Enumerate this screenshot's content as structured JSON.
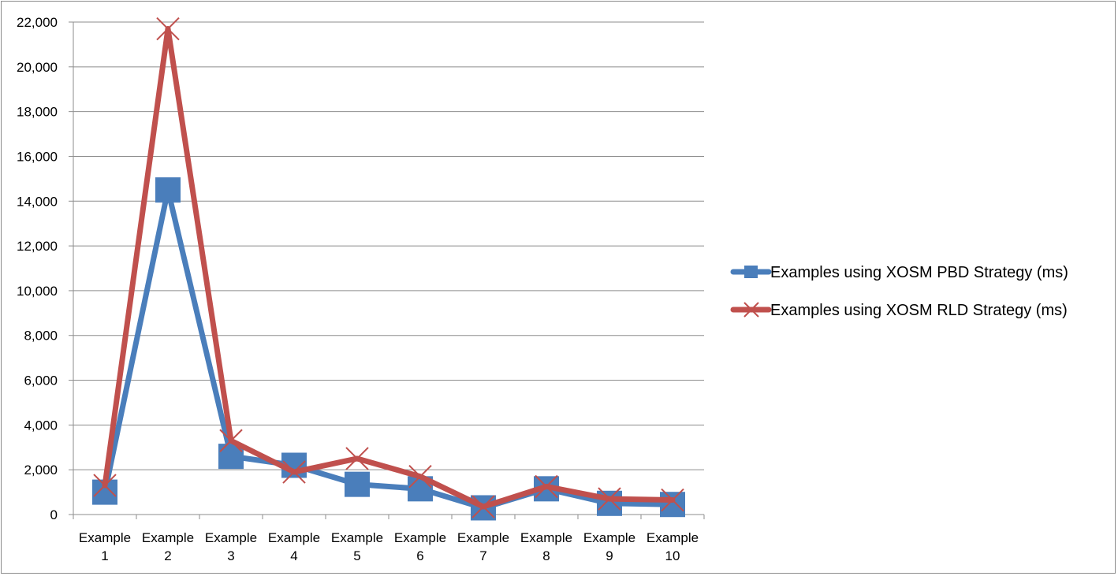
{
  "chart_data": {
    "type": "line",
    "title": "",
    "xlabel": "",
    "ylabel": "",
    "ylim": [
      0,
      22000
    ],
    "yticks": [
      0,
      2000,
      4000,
      6000,
      8000,
      10000,
      12000,
      14000,
      16000,
      18000,
      20000,
      22000
    ],
    "ytick_labels": [
      "0",
      "2,000",
      "4,000",
      "6,000",
      "8,000",
      "10,000",
      "12,000",
      "14,000",
      "16,000",
      "18,000",
      "20,000",
      "22,000"
    ],
    "categories": [
      [
        "Example",
        "1"
      ],
      [
        "Example",
        "2"
      ],
      [
        "Example",
        "3"
      ],
      [
        "Example",
        "4"
      ],
      [
        "Example",
        "5"
      ],
      [
        "Example",
        "6"
      ],
      [
        "Example",
        "7"
      ],
      [
        "Example",
        "8"
      ],
      [
        "Example",
        "9"
      ],
      [
        "Example",
        "10"
      ]
    ],
    "grid": "horizontal",
    "legend_position": "right",
    "series": [
      {
        "name": "Examples using XOSM PBD Strategy (ms)",
        "color": "#4a7ebb",
        "marker": "square",
        "values": [
          1000,
          14500,
          2600,
          2200,
          1350,
          1150,
          300,
          1150,
          500,
          450
        ]
      },
      {
        "name": "Examples using XOSM RLD Strategy (ms)",
        "color": "#c0504d",
        "marker": "x",
        "values": [
          1300,
          21700,
          3300,
          1900,
          2500,
          1700,
          350,
          1250,
          700,
          650
        ]
      }
    ]
  }
}
